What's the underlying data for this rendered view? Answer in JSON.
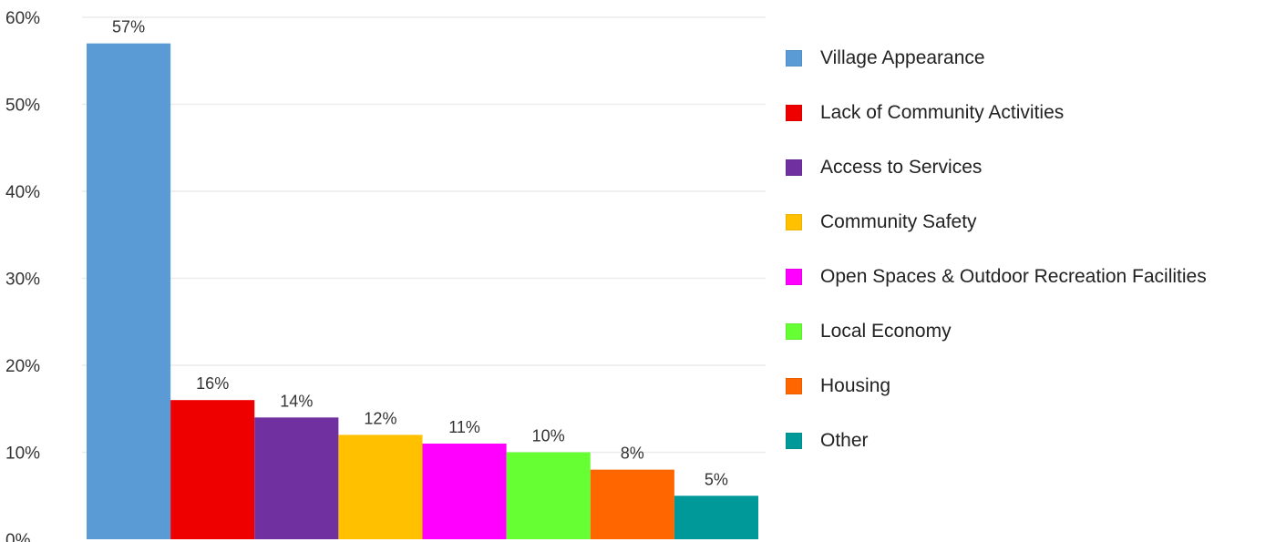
{
  "chart_data": {
    "type": "bar",
    "title": "",
    "xlabel": "",
    "ylabel": "",
    "ylim": [
      0,
      60
    ],
    "yticks": [
      0,
      10,
      20,
      30,
      40,
      50,
      60
    ],
    "ytick_labels": [
      "0%",
      "10%",
      "20%",
      "30%",
      "40%",
      "50%",
      "60%"
    ],
    "grid": true,
    "legend_position": "right",
    "categories": [
      "Village Appearance",
      "Lack of Community Activities",
      "Access to Services",
      "Community Safety",
      "Open Spaces & Outdoor Recreation Facilities",
      "Local Economy",
      "Housing",
      "Other"
    ],
    "values": [
      57,
      16,
      14,
      12,
      11,
      10,
      8,
      5
    ],
    "data_labels": [
      "57%",
      "16%",
      "14%",
      "12%",
      "11%",
      "10%",
      "8%",
      "5%"
    ],
    "colors": [
      "#5b9bd5",
      "#ee0000",
      "#7030a0",
      "#ffc000",
      "#ff00ff",
      "#66ff33",
      "#ff6600",
      "#009999"
    ]
  }
}
